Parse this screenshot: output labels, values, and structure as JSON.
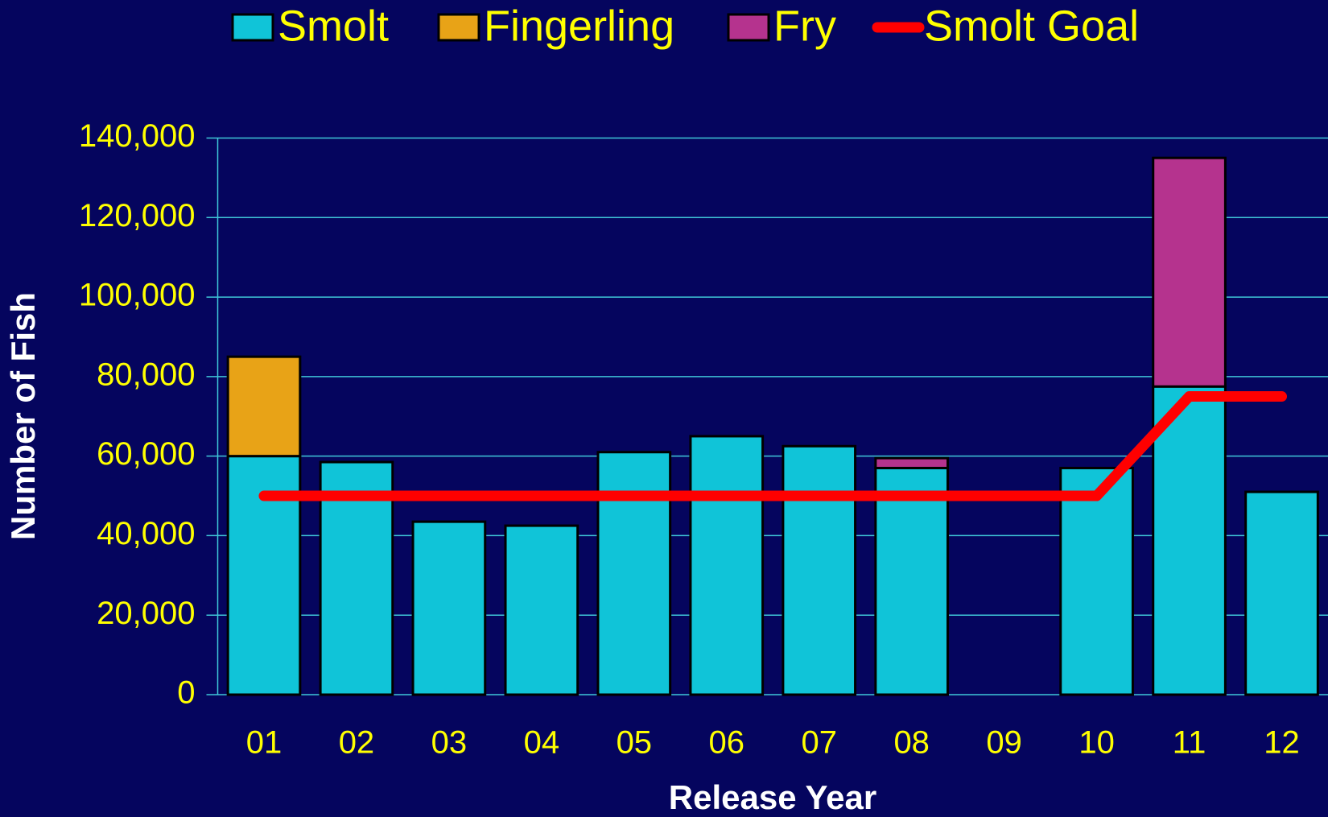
{
  "chart_data": {
    "type": "bar",
    "stacked": true,
    "y_label": "Number of Fish",
    "x_label": "Release Year",
    "categories": [
      "01",
      "02",
      "03",
      "04",
      "05",
      "06",
      "07",
      "08",
      "09",
      "10",
      "11",
      "12"
    ],
    "series": [
      {
        "name": "Smolt",
        "type": "bar",
        "color": "#10c4d8",
        "values": [
          60000,
          58500,
          43500,
          42500,
          61000,
          65000,
          62500,
          57000,
          null,
          57000,
          77500,
          51000
        ]
      },
      {
        "name": "Fingerling",
        "type": "bar",
        "color": "#e8a317",
        "values": [
          25000,
          null,
          null,
          null,
          null,
          null,
          null,
          null,
          null,
          null,
          null,
          null
        ]
      },
      {
        "name": "Fry",
        "type": "bar",
        "color": "#b5338e",
        "values": [
          null,
          null,
          null,
          null,
          null,
          null,
          null,
          2500,
          null,
          null,
          57500,
          null
        ]
      },
      {
        "name": "Smolt Goal",
        "type": "line",
        "color": "#ff0000",
        "values": [
          50000,
          50000,
          50000,
          50000,
          50000,
          50000,
          50000,
          50000,
          50000,
          50000,
          75000,
          75000
        ]
      }
    ],
    "ylim": [
      0,
      140000
    ],
    "yticks": [
      0,
      {
        "value": 20000,
        "label": "20,000"
      },
      {
        "value": 40000,
        "label": "40,000"
      },
      {
        "value": 60000,
        "label": "60,000"
      },
      {
        "value": 80000,
        "label": "80,000"
      },
      {
        "value": 100000,
        "label": "100,000"
      },
      {
        "value": 120000,
        "label": "120,000"
      },
      {
        "value": 140000,
        "label": "140,000"
      }
    ],
    "grid": true,
    "legend": "top"
  }
}
